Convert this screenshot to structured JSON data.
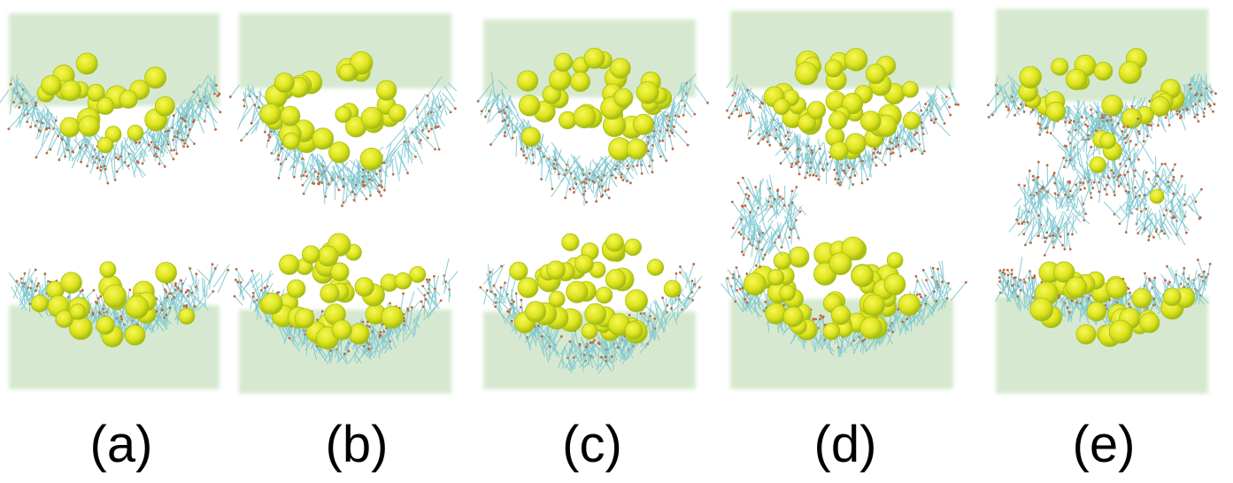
{
  "figure": {
    "panels": [
      {
        "id": "a",
        "label": "(a)"
      },
      {
        "id": "b",
        "label": "(b)"
      },
      {
        "id": "c",
        "label": "(c)"
      },
      {
        "id": "d",
        "label": "(d)"
      },
      {
        "id": "e",
        "label": "(e)"
      }
    ]
  },
  "colors": {
    "water": "#cfe6c8",
    "lipid_tail": "#7fc8cf",
    "lipid_head": "#c0653a",
    "particle": "#e3e61e",
    "particle_shade": "#a9c01a"
  }
}
